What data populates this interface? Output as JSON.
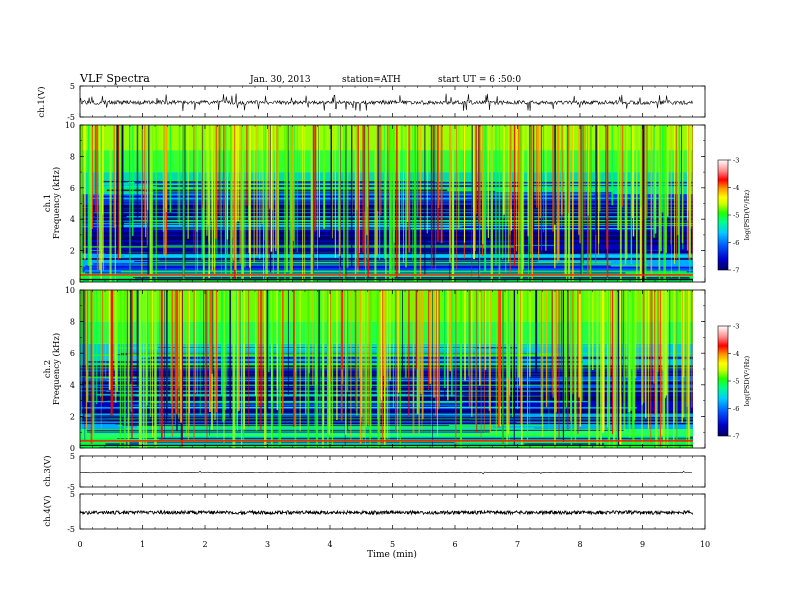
{
  "header": {
    "title": "VLF Spectra",
    "date": "Jan. 30, 2013",
    "station": "station=ATH",
    "start_time": "start UT = 6 :50:0"
  },
  "chart_data": [
    {
      "id": "ch1-waveform",
      "type": "line",
      "ylabel": "ch.1(V)",
      "ylim": [
        -5,
        5
      ],
      "yticks": [
        "5",
        "-5"
      ],
      "xlim": [
        0,
        10
      ]
    },
    {
      "id": "ch1-spectrogram",
      "type": "heatmap",
      "ylabel_channel": "ch.1",
      "ylabel": "Frequency (kHz)",
      "ylim": [
        0,
        10
      ],
      "yticks": [
        "0",
        "2",
        "4",
        "6",
        "8",
        "10"
      ],
      "xlim": [
        0,
        10
      ],
      "colorbar": {
        "label": "log(PSD(V²/Hz)",
        "range": [
          -7,
          -3
        ],
        "ticks": [
          "-3",
          "-4",
          "-5",
          "-6",
          "-7"
        ]
      }
    },
    {
      "id": "ch2-spectrogram",
      "type": "heatmap",
      "ylabel_channel": "ch.2",
      "ylabel": "Frequency (kHz)",
      "ylim": [
        0,
        10
      ],
      "yticks": [
        "0",
        "2",
        "4",
        "6",
        "8",
        "10"
      ],
      "xlim": [
        0,
        10
      ],
      "colorbar": {
        "label": "log(PSD(V²/Hz)",
        "range": [
          -7,
          -3
        ],
        "ticks": [
          "-3",
          "-4",
          "-5",
          "-6",
          "-7"
        ]
      }
    },
    {
      "id": "ch3-waveform",
      "type": "line",
      "ylabel": "ch.3(V)",
      "ylim": [
        -5,
        5
      ],
      "yticks": [
        "5",
        "-5"
      ],
      "xlim": [
        0,
        10
      ]
    },
    {
      "id": "ch4-waveform",
      "type": "line",
      "ylabel": "ch.4(V)",
      "ylim": [
        -5,
        5
      ],
      "yticks": [
        "5",
        "-5"
      ],
      "xlim": [
        0,
        10
      ],
      "xlabel": "Time (min)",
      "xticks": [
        "0",
        "1",
        "2",
        "3",
        "4",
        "5",
        "6",
        "7",
        "8",
        "9",
        "10"
      ]
    }
  ],
  "colors": {
    "scale": [
      "#000066",
      "#0000cc",
      "#0044ff",
      "#00aaff",
      "#00ffcc",
      "#00ff44",
      "#66ff00",
      "#ccff00",
      "#ffff00",
      "#ffaa00",
      "#ff4400",
      "#ff0000",
      "#ff8080",
      "#ffd6d6",
      "#ffffff"
    ],
    "trace": "#000000"
  }
}
